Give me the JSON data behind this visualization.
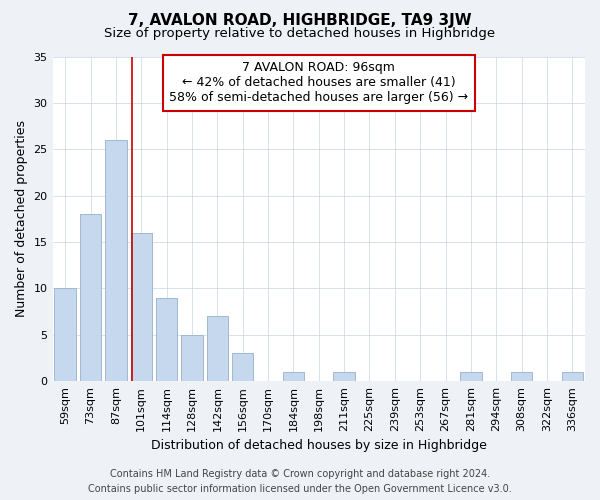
{
  "title": "7, AVALON ROAD, HIGHBRIDGE, TA9 3JW",
  "subtitle": "Size of property relative to detached houses in Highbridge",
  "xlabel": "Distribution of detached houses by size in Highbridge",
  "ylabel": "Number of detached properties",
  "bar_labels": [
    "59sqm",
    "73sqm",
    "87sqm",
    "101sqm",
    "114sqm",
    "128sqm",
    "142sqm",
    "156sqm",
    "170sqm",
    "184sqm",
    "198sqm",
    "211sqm",
    "225sqm",
    "239sqm",
    "253sqm",
    "267sqm",
    "281sqm",
    "294sqm",
    "308sqm",
    "322sqm",
    "336sqm"
  ],
  "bar_values": [
    10,
    18,
    26,
    16,
    9,
    5,
    7,
    3,
    0,
    1,
    0,
    1,
    0,
    0,
    0,
    0,
    1,
    0,
    1,
    0,
    1
  ],
  "bar_color": "#c5d8ed",
  "bar_edge_color": "#a0b8d0",
  "vline_x": 2.64,
  "vline_color": "#cc0000",
  "annotation_text": "7 AVALON ROAD: 96sqm\n← 42% of detached houses are smaller (41)\n58% of semi-detached houses are larger (56) →",
  "annotation_box_edgecolor": "#cc0000",
  "annotation_box_facecolor": "#ffffff",
  "ylim": [
    0,
    35
  ],
  "yticks": [
    0,
    5,
    10,
    15,
    20,
    25,
    30,
    35
  ],
  "footer_line1": "Contains HM Land Registry data © Crown copyright and database right 2024.",
  "footer_line2": "Contains public sector information licensed under the Open Government Licence v3.0.",
  "background_color": "#eef2f7",
  "plot_background_color": "#ffffff",
  "title_fontsize": 11,
  "subtitle_fontsize": 9.5,
  "axis_label_fontsize": 9,
  "tick_fontsize": 8,
  "annotation_fontsize": 9,
  "footer_fontsize": 7
}
